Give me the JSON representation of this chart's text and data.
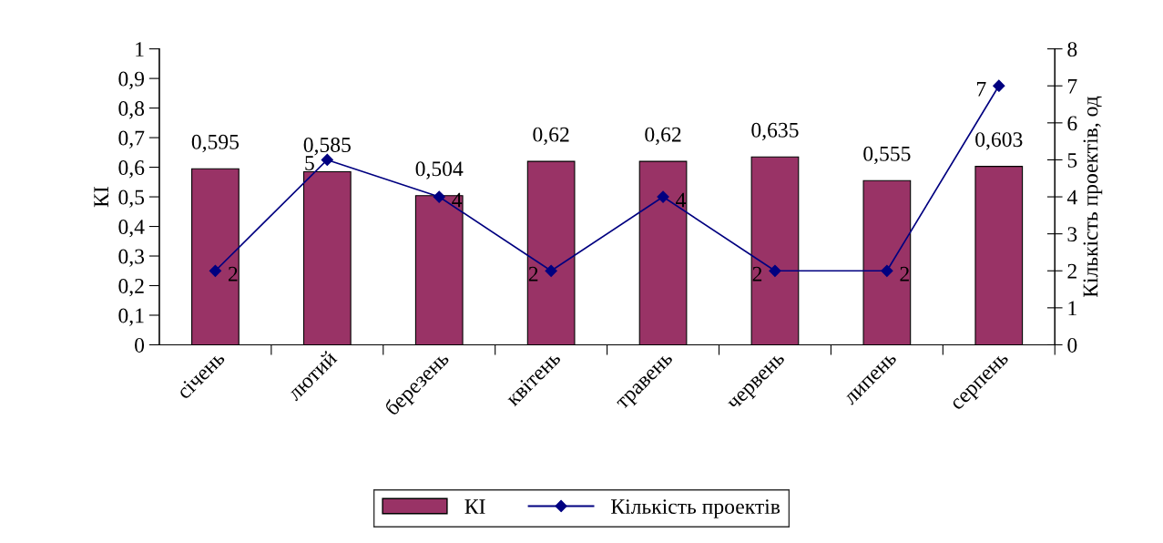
{
  "chart_data": {
    "type": "bar",
    "ylabel": "КІ",
    "y2label": "Кількість проектів, од",
    "categories": [
      "січень",
      "лютий",
      "березень",
      "квітень",
      "травень",
      "червень",
      "липень",
      "серпень"
    ],
    "series": [
      {
        "name": "КІ",
        "color": "#993366",
        "values": [
          0.595,
          0.585,
          0.504,
          0.62,
          0.62,
          0.635,
          0.555,
          0.603
        ],
        "value_labels": [
          "0,595",
          "0,585",
          "0,504",
          "0,62",
          "0,62",
          "0,635",
          "0,555",
          "0,603"
        ]
      },
      {
        "name": "Кількість проектів",
        "type": "line",
        "axis": "y2",
        "color": "#000080",
        "marker": "diamond",
        "values": [
          2,
          5,
          4,
          2,
          4,
          2,
          2,
          7
        ],
        "value_labels": [
          "2",
          "5",
          "4",
          "2",
          "4",
          "2",
          "2",
          "7"
        ]
      }
    ],
    "ylim": [
      0,
      1
    ],
    "yticks": [
      0,
      {
        "value": 0.1,
        "label": "0,1"
      },
      {
        "value": 0.2,
        "label": "0,2"
      },
      {
        "value": 0.3,
        "label": "0,3"
      },
      {
        "value": 0.4,
        "label": "0,4"
      },
      {
        "value": 0.5,
        "label": "0,5"
      },
      {
        "value": 0.6,
        "label": "0,6"
      },
      {
        "value": 0.7,
        "label": "0,7"
      },
      {
        "value": 0.8,
        "label": "0,8"
      },
      {
        "value": 0.9,
        "label": "0,9"
      },
      1
    ],
    "y2lim": [
      0,
      8
    ],
    "y2ticks": [
      0,
      1,
      2,
      3,
      4,
      5,
      6,
      7,
      8
    ],
    "legend": "bottom",
    "grid": false
  }
}
